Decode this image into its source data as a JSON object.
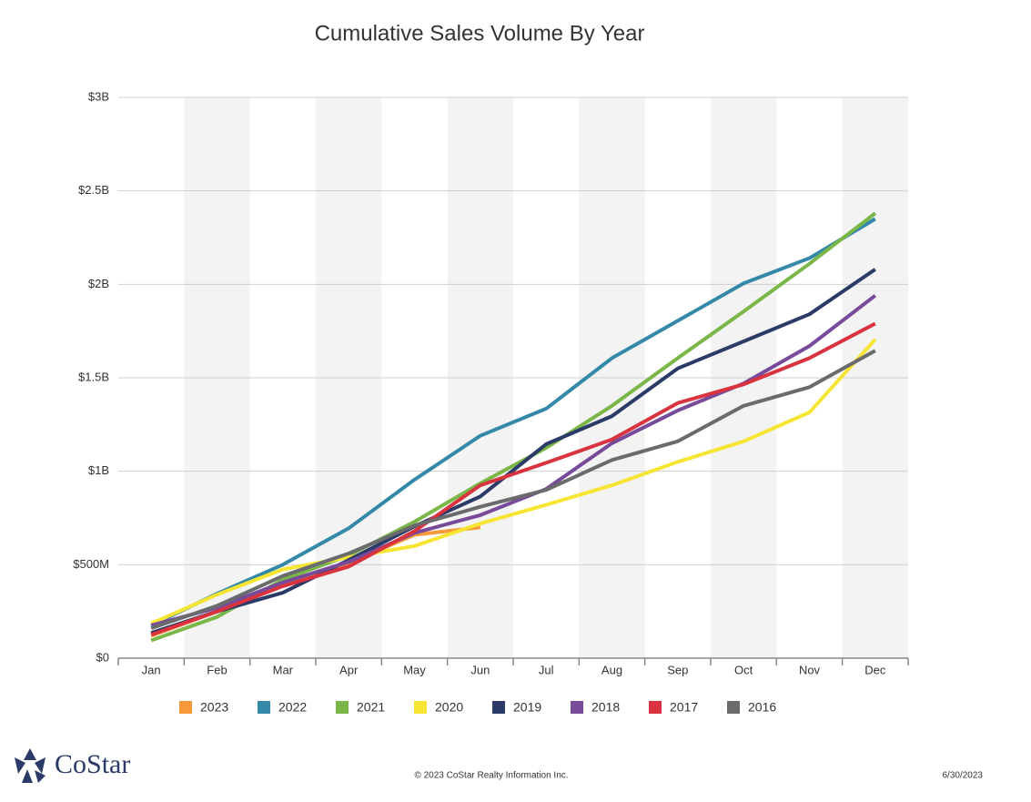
{
  "chart_data": {
    "type": "line",
    "title": "Cumulative Sales Volume By Year",
    "categories": [
      "Jan",
      "Feb",
      "Mar",
      "Apr",
      "May",
      "Jun",
      "Jul",
      "Aug",
      "Sep",
      "Oct",
      "Nov",
      "Dec"
    ],
    "ylim": [
      0,
      3000
    ],
    "yticks": [
      {
        "value": 0,
        "label": "$0"
      },
      {
        "value": 500,
        "label": "$500M"
      },
      {
        "value": 1000,
        "label": "$1B"
      },
      {
        "value": 1500,
        "label": "$1.5B"
      },
      {
        "value": 2000,
        "label": "$2B"
      },
      {
        "value": 2500,
        "label": "$2.5B"
      },
      {
        "value": 3000,
        "label": "$3B"
      }
    ],
    "grid": true,
    "band_shading": true,
    "legend": "bottom",
    "series": [
      {
        "name": "2023",
        "color": "#f7993b",
        "values": [
          120,
          250,
          390,
          510,
          660,
          700,
          null,
          null,
          null,
          null,
          null,
          null
        ]
      },
      {
        "name": "2022",
        "color": "#3589a8",
        "values": [
          175,
          345,
          500,
          695,
          955,
          1190,
          1335,
          1605,
          1805,
          2005,
          2140,
          2350
        ]
      },
      {
        "name": "2021",
        "color": "#7ab648",
        "values": [
          95,
          220,
          420,
          550,
          730,
          935,
          1125,
          1350,
          1605,
          1855,
          2110,
          2380
        ]
      },
      {
        "name": "2020",
        "color": "#f7e533",
        "values": [
          185,
          340,
          475,
          540,
          600,
          720,
          820,
          925,
          1050,
          1160,
          1315,
          1705
        ]
      },
      {
        "name": "2019",
        "color": "#2b3a67",
        "values": [
          135,
          250,
          350,
          525,
          705,
          865,
          1145,
          1295,
          1550,
          1695,
          1840,
          2080
        ]
      },
      {
        "name": "2018",
        "color": "#774a9a",
        "values": [
          175,
          270,
          405,
          515,
          670,
          765,
          905,
          1150,
          1325,
          1470,
          1670,
          1940
        ]
      },
      {
        "name": "2017",
        "color": "#d8333f",
        "values": [
          125,
          250,
          385,
          490,
          680,
          925,
          1045,
          1170,
          1365,
          1465,
          1605,
          1790
        ]
      },
      {
        "name": "2016",
        "color": "#6a6b6d",
        "values": [
          160,
          280,
          440,
          560,
          710,
          810,
          900,
          1060,
          1160,
          1350,
          1450,
          1645
        ]
      }
    ]
  },
  "footer": {
    "logo": "CoStar",
    "copyright": "© 2023 CoStar Realty Information Inc.",
    "date": "6/30/2023"
  }
}
